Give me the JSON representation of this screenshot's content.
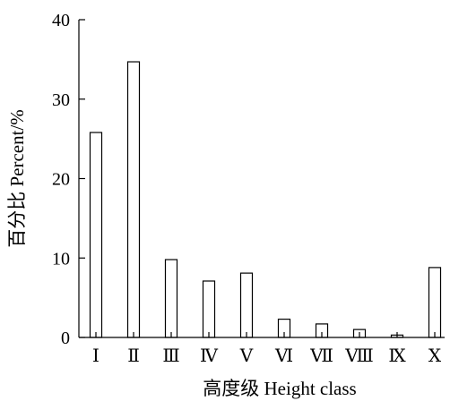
{
  "chart_data": {
    "type": "bar",
    "xlabel": "高度级 Height class",
    "ylabel": "百分比 Percent/%",
    "ylim": [
      0,
      40
    ],
    "yticks": [
      0,
      10,
      20,
      30,
      40
    ],
    "categories": [
      "Ⅰ",
      "Ⅱ",
      "Ⅲ",
      "Ⅳ",
      "Ⅴ",
      "Ⅵ",
      "Ⅶ",
      "Ⅷ",
      "Ⅸ",
      "Ⅹ"
    ],
    "values": [
      25.8,
      34.7,
      9.8,
      7.1,
      8.1,
      2.3,
      1.7,
      1.0,
      0.3,
      8.8
    ],
    "grid": false,
    "legend": "none"
  }
}
